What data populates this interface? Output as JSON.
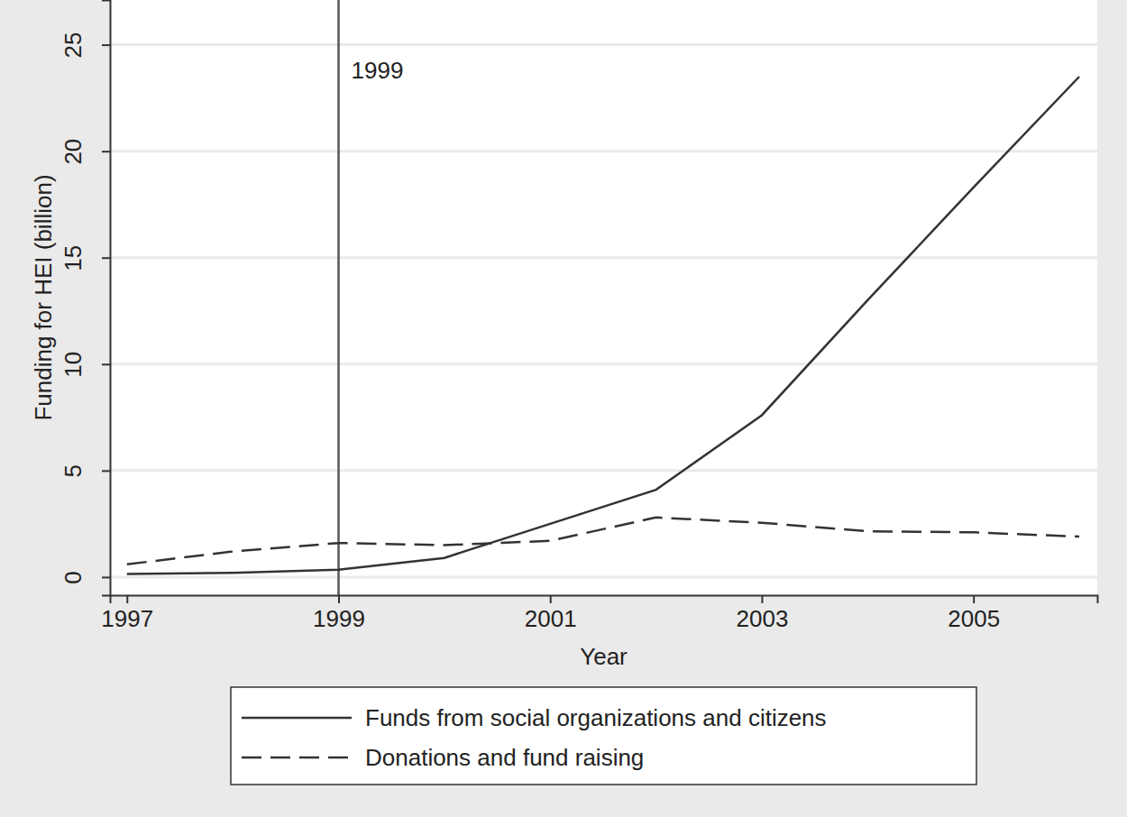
{
  "chart_data": {
    "type": "line",
    "x_label": "Year",
    "y_label": "Funding for HEI (billion)",
    "x": [
      1997,
      1998,
      1999,
      2000,
      2001,
      2002,
      2003,
      2004,
      2005,
      2006
    ],
    "series": [
      {
        "name": "Funds from social organizations and citizens",
        "color": "#333333",
        "line_style": "solid",
        "values": [
          0.15,
          0.2,
          0.35,
          0.9,
          2.5,
          4.1,
          7.6,
          13.0,
          18.3,
          23.5
        ]
      },
      {
        "name": "Donations and fund raising",
        "color": "#333333",
        "line_style": "dashed",
        "values": [
          0.6,
          1.2,
          1.6,
          1.5,
          1.7,
          2.8,
          2.55,
          2.15,
          2.1,
          1.9
        ]
      }
    ],
    "xlim": [
      1996.84,
      2006.17
    ],
    "xticks": [
      1997,
      1999,
      2001,
      2003,
      2005
    ],
    "ylim": [
      -0.85,
      27.1
    ],
    "yticks": [
      0,
      5,
      10,
      15,
      20,
      25
    ],
    "grid": true,
    "legend": "bottom",
    "annotations": [
      {
        "x": 1999,
        "text": "1999"
      }
    ]
  }
}
